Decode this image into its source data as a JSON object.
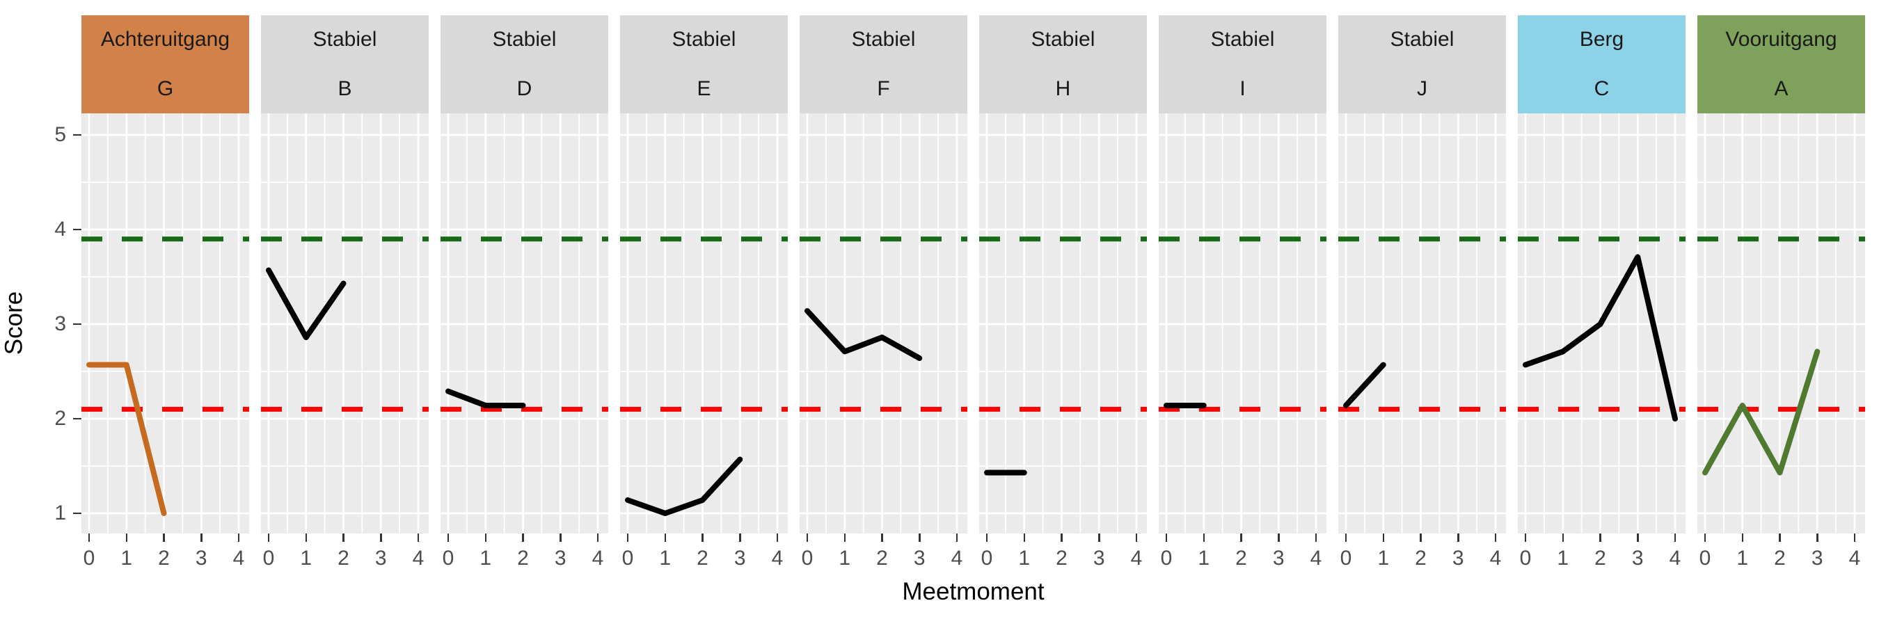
{
  "chart_data": {
    "type": "line",
    "title": "",
    "xlabel": "Meetmoment",
    "ylabel": "Score",
    "x_ticks": [
      "0",
      "1",
      "2",
      "3",
      "4"
    ],
    "y_ticks": [
      "5",
      "4",
      "3",
      "2",
      "1"
    ],
    "xlim": [
      0,
      4
    ],
    "ylim": [
      1,
      5
    ],
    "grid": true,
    "legend": "none",
    "panel_background": "#ebebeb",
    "grid_color": "#ffffff",
    "hlines": [
      {
        "y": 3.9,
        "color": "#186a18",
        "style": "dashed",
        "name": "upper-reference"
      },
      {
        "y": 2.1,
        "color": "#ff0000",
        "style": "dashed",
        "name": "lower-reference"
      }
    ],
    "facets": [
      {
        "group": "Achteruitgang",
        "letter": "G",
        "strip_color": "#d28149",
        "line_color": "#c66a1f",
        "x": [
          0,
          1,
          2
        ],
        "y": [
          2.57,
          2.57,
          1.0
        ]
      },
      {
        "group": "Stabiel",
        "letter": "B",
        "strip_color": "#d9d9d9",
        "line_color": "#000000",
        "x": [
          0,
          1,
          2
        ],
        "y": [
          3.57,
          2.86,
          3.43
        ]
      },
      {
        "group": "Stabiel",
        "letter": "D",
        "strip_color": "#d9d9d9",
        "line_color": "#000000",
        "x": [
          0,
          1,
          2
        ],
        "y": [
          2.29,
          2.14,
          2.14
        ]
      },
      {
        "group": "Stabiel",
        "letter": "E",
        "strip_color": "#d9d9d9",
        "line_color": "#000000",
        "x": [
          0,
          1,
          2,
          3
        ],
        "y": [
          1.14,
          1.0,
          1.14,
          1.57
        ]
      },
      {
        "group": "Stabiel",
        "letter": "F",
        "strip_color": "#d9d9d9",
        "line_color": "#000000",
        "x": [
          0,
          1,
          2,
          3
        ],
        "y": [
          3.14,
          2.71,
          2.86,
          2.64
        ]
      },
      {
        "group": "Stabiel",
        "letter": "H",
        "strip_color": "#d9d9d9",
        "line_color": "#000000",
        "x": [
          0,
          1
        ],
        "y": [
          1.43,
          1.43
        ]
      },
      {
        "group": "Stabiel",
        "letter": "I",
        "strip_color": "#d9d9d9",
        "line_color": "#000000",
        "x": [
          0,
          1
        ],
        "y": [
          2.14,
          2.14
        ]
      },
      {
        "group": "Stabiel",
        "letter": "J",
        "strip_color": "#d9d9d9",
        "line_color": "#000000",
        "x": [
          0,
          1
        ],
        "y": [
          2.14,
          2.57
        ]
      },
      {
        "group": "Berg",
        "letter": "C",
        "strip_color": "#8dd3e7",
        "line_color": "#000000",
        "x": [
          0,
          1,
          2,
          3,
          4
        ],
        "y": [
          2.57,
          2.71,
          3.0,
          3.71,
          2.0
        ]
      },
      {
        "group": "Vooruitgang",
        "letter": "A",
        "strip_color": "#7ea25b",
        "line_color": "#4e7b2f",
        "x": [
          0,
          1,
          2,
          3
        ],
        "y": [
          1.43,
          2.14,
          1.43,
          2.71
        ]
      }
    ]
  }
}
